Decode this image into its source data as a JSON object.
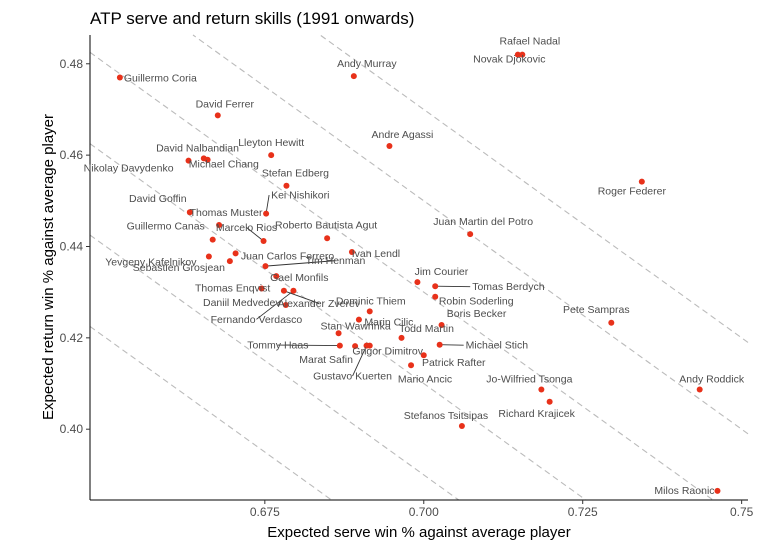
{
  "chart_data": {
    "type": "scatter",
    "title": "ATP serve and return skills (1991 onwards)",
    "xlabel": "Expected serve win % against average player",
    "ylabel": "Expected return win % against average player",
    "xlim": [
      0.6475,
      0.751
    ],
    "ylim": [
      0.3845,
      0.4863
    ],
    "x_ticks": [
      0.675,
      0.7,
      0.725,
      0.75
    ],
    "x_tick_labels": [
      "0.675",
      "0.700",
      "0.725",
      "0.75"
    ],
    "y_ticks": [
      0.4,
      0.42,
      0.44,
      0.46,
      0.48
    ],
    "y_tick_labels": [
      "0.40",
      "0.42",
      "0.44",
      "0.46",
      "0.48"
    ],
    "grid": false,
    "reference_lines": {
      "style": "dashed",
      "color": "#bbbbbb",
      "slope": -1,
      "sums": [
        1.07,
        1.09,
        1.11,
        1.13,
        1.15,
        1.17
      ]
    },
    "point_color": "#e8311a",
    "points": [
      {
        "name": "Rafael Nadal",
        "x": 0.7148,
        "y": 0.482
      },
      {
        "name": "Novak Djokovic",
        "x": 0.7155,
        "y": 0.482
      },
      {
        "name": "Andy Murray",
        "x": 0.689,
        "y": 0.4773
      },
      {
        "name": "Guillermo Coria",
        "x": 0.6522,
        "y": 0.477
      },
      {
        "name": "David Ferrer",
        "x": 0.6676,
        "y": 0.4687
      },
      {
        "name": "Andre Agassi",
        "x": 0.6946,
        "y": 0.462
      },
      {
        "name": "David Nalbandian",
        "x": 0.663,
        "y": 0.4588
      },
      {
        "name": "Michael Chang",
        "x": 0.6654,
        "y": 0.4593
      },
      {
        "name": "Nikolay Davydenko",
        "x": 0.666,
        "y": 0.459
      },
      {
        "name": "Lleyton Hewitt",
        "x": 0.676,
        "y": 0.46
      },
      {
        "name": "Roger Federer",
        "x": 0.7343,
        "y": 0.4542
      },
      {
        "name": "Stefan Edberg",
        "x": 0.6784,
        "y": 0.4533
      },
      {
        "name": "David Goffin",
        "x": 0.6632,
        "y": 0.4475
      },
      {
        "name": "Kei Nishikori",
        "x": 0.6752,
        "y": 0.4472
      },
      {
        "name": "Thomas Muster",
        "x": 0.6678,
        "y": 0.4447
      },
      {
        "name": "Juan Martin del Potro",
        "x": 0.7073,
        "y": 0.4427
      },
      {
        "name": "Guillermo Canas",
        "x": 0.6668,
        "y": 0.4415
      },
      {
        "name": "Marcelo Rios",
        "x": 0.6748,
        "y": 0.4412
      },
      {
        "name": "Roberto Bautista Agut",
        "x": 0.6848,
        "y": 0.4418
      },
      {
        "name": "Yevgeny Kafelnikov",
        "x": 0.6662,
        "y": 0.4378
      },
      {
        "name": "Juan Carlos Ferrero",
        "x": 0.6704,
        "y": 0.4385
      },
      {
        "name": "Ivan Lendl",
        "x": 0.6887,
        "y": 0.4388
      },
      {
        "name": "Sebastien Grosjean",
        "x": 0.6695,
        "y": 0.4368
      },
      {
        "name": "Tim Henman",
        "x": 0.6751,
        "y": 0.4357
      },
      {
        "name": "Gael Monfils",
        "x": 0.6768,
        "y": 0.4335
      },
      {
        "name": "Jim Courier",
        "x": 0.699,
        "y": 0.4322
      },
      {
        "name": "Tomas Berdych",
        "x": 0.7018,
        "y": 0.4313
      },
      {
        "name": "Thomas Enqvist",
        "x": 0.6745,
        "y": 0.4308
      },
      {
        "name": "Alexander Zverev",
        "x": 0.678,
        "y": 0.4303
      },
      {
        "name": "Fernando Verdasco",
        "x": 0.6795,
        "y": 0.4303
      },
      {
        "name": "Robin Soderling",
        "x": 0.7018,
        "y": 0.429
      },
      {
        "name": "Daniil Medvedev",
        "x": 0.6783,
        "y": 0.4272
      },
      {
        "name": "Dominic Thiem",
        "x": 0.6915,
        "y": 0.4258
      },
      {
        "name": "Marin Cilic",
        "x": 0.6898,
        "y": 0.424
      },
      {
        "name": "Boris Becker",
        "x": 0.7028,
        "y": 0.4228
      },
      {
        "name": "Pete Sampras",
        "x": 0.7295,
        "y": 0.4233
      },
      {
        "name": "Stan Wawrinka",
        "x": 0.6866,
        "y": 0.421
      },
      {
        "name": "Todd Martin",
        "x": 0.6965,
        "y": 0.42
      },
      {
        "name": "Tommy Haas",
        "x": 0.6868,
        "y": 0.4183
      },
      {
        "name": "Michael Stich",
        "x": 0.7025,
        "y": 0.4185
      },
      {
        "name": "Marat Safin",
        "x": 0.6892,
        "y": 0.4182
      },
      {
        "name": "Grigor Dimitrov",
        "x": 0.6915,
        "y": 0.4183
      },
      {
        "name": "Patrick Rafter",
        "x": 0.7,
        "y": 0.4162
      },
      {
        "name": "Gustavo Kuerten",
        "x": 0.691,
        "y": 0.4183
      },
      {
        "name": "Mario Ancic",
        "x": 0.698,
        "y": 0.414
      },
      {
        "name": "Jo-Wilfried Tsonga",
        "x": 0.7185,
        "y": 0.4087
      },
      {
        "name": "Andy Roddick",
        "x": 0.7434,
        "y": 0.4087
      },
      {
        "name": "Richard Krajicek",
        "x": 0.7198,
        "y": 0.406
      },
      {
        "name": "Stefanos Tsitsipas",
        "x": 0.706,
        "y": 0.4007
      },
      {
        "name": "Milos Raonic",
        "x": 0.7462,
        "y": 0.3865
      }
    ]
  }
}
